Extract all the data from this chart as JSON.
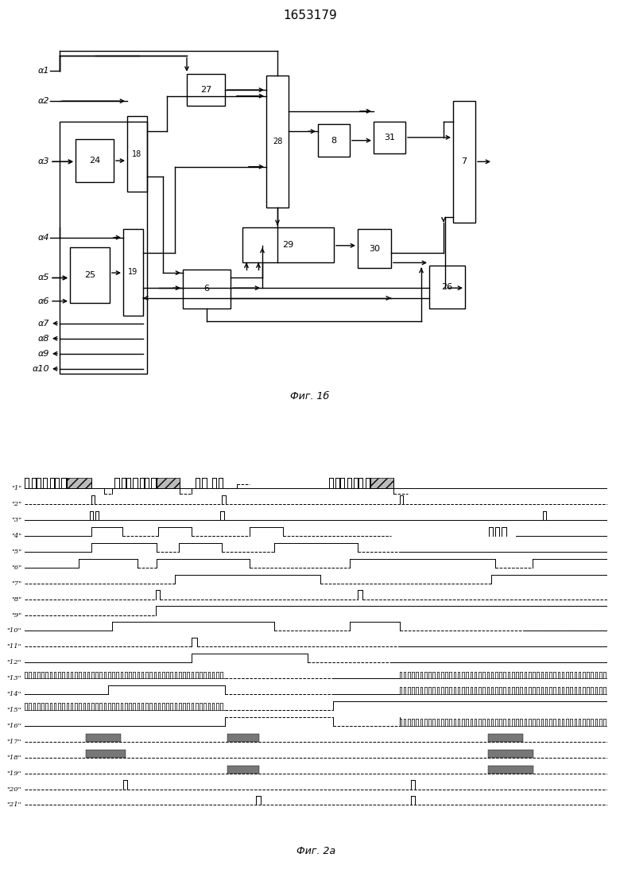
{
  "title": "1653179",
  "fig1b_caption": "Фиг. 1б",
  "fig2a_caption": "Фиг. 2а",
  "bg_color": "#ffffff",
  "line_color": "#000000",
  "box_color": "#ffffff"
}
